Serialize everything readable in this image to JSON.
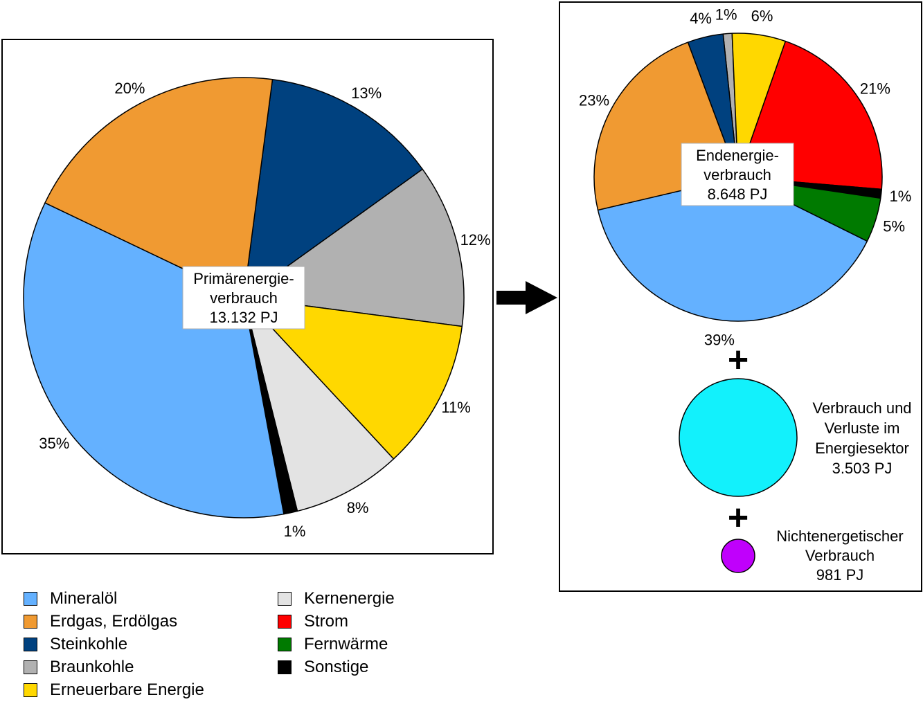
{
  "colors": {
    "mineraloel": "#64b1ff",
    "erdgas": "#f09a32",
    "steinkohle": "#00417f",
    "braunkohle": "#b1b1b1",
    "erneuerbare": "#ffd800",
    "kernenergie": "#e3e3e3",
    "strom": "#ff0000",
    "fernwaerme": "#007a00",
    "sonstige": "#000000",
    "verluste": "#12f1fc",
    "nichtenergetisch": "#c000fc"
  },
  "legend": [
    {
      "label": "Mineralöl",
      "color_key": "mineraloel"
    },
    {
      "label": "Erdgas, Erdölgas",
      "color_key": "erdgas"
    },
    {
      "label": "Steinkohle",
      "color_key": "steinkohle"
    },
    {
      "label": "Braunkohle",
      "color_key": "braunkohle"
    },
    {
      "label": "Erneuerbare Energie",
      "color_key": "erneuerbare"
    },
    {
      "label": "Kernenergie",
      "color_key": "kernenergie"
    },
    {
      "label": "Strom",
      "color_key": "strom"
    },
    {
      "label": "Fernwärme",
      "color_key": "fernwaerme"
    },
    {
      "label": "Sonstige",
      "color_key": "sonstige"
    }
  ],
  "chart_data": [
    {
      "type": "pie",
      "title": [
        "Primärenergie-",
        "verbrauch",
        "13.132 PJ"
      ],
      "slices": [
        {
          "label": "Steinkohle",
          "color_key": "steinkohle",
          "value": 13,
          "text": "13%"
        },
        {
          "label": "Braunkohle",
          "color_key": "braunkohle",
          "value": 12,
          "text": "12%"
        },
        {
          "label": "Erneuerbare Energie",
          "color_key": "erneuerbare",
          "value": 11,
          "text": "11%"
        },
        {
          "label": "Kernenergie",
          "color_key": "kernenergie",
          "value": 8,
          "text": "8%"
        },
        {
          "label": "Sonstige",
          "color_key": "sonstige",
          "value": 1,
          "text": "1%"
        },
        {
          "label": "Mineralöl",
          "color_key": "mineraloel",
          "value": 35,
          "text": "35%"
        },
        {
          "label": "Erdgas, Erdölgas",
          "color_key": "erdgas",
          "value": 20,
          "text": "20%"
        }
      ]
    },
    {
      "type": "pie",
      "title": [
        "Endenergie-",
        "verbrauch",
        "8.648 PJ"
      ],
      "slices": [
        {
          "label": "Braunkohle",
          "color_key": "braunkohle",
          "value": 1,
          "text": "1%"
        },
        {
          "label": "Erneuerbare Energie",
          "color_key": "erneuerbare",
          "value": 6,
          "text": "6%"
        },
        {
          "label": "Strom",
          "color_key": "strom",
          "value": 21,
          "text": "21%"
        },
        {
          "label": "Sonstige",
          "color_key": "sonstige",
          "value": 1,
          "text": "1%"
        },
        {
          "label": "Fernwärme",
          "color_key": "fernwaerme",
          "value": 5,
          "text": "5%"
        },
        {
          "label": "Mineralöl",
          "color_key": "mineraloel",
          "value": 39,
          "text": "39%"
        },
        {
          "label": "Erdgas, Erdölgas",
          "color_key": "erdgas",
          "value": 23,
          "text": "23%"
        },
        {
          "label": "Steinkohle",
          "color_key": "steinkohle",
          "value": 4,
          "text": "4%"
        }
      ]
    }
  ],
  "extra": {
    "plus": "+",
    "verluste": {
      "lines": [
        "Verbrauch und",
        "Verluste im",
        "Energiesektor",
        "3.503 PJ"
      ],
      "color_key": "verluste"
    },
    "nichtenergetisch": {
      "lines": [
        "Nichtenergetischer",
        "Verbrauch",
        "981 PJ"
      ],
      "color_key": "nichtenergetisch"
    }
  }
}
